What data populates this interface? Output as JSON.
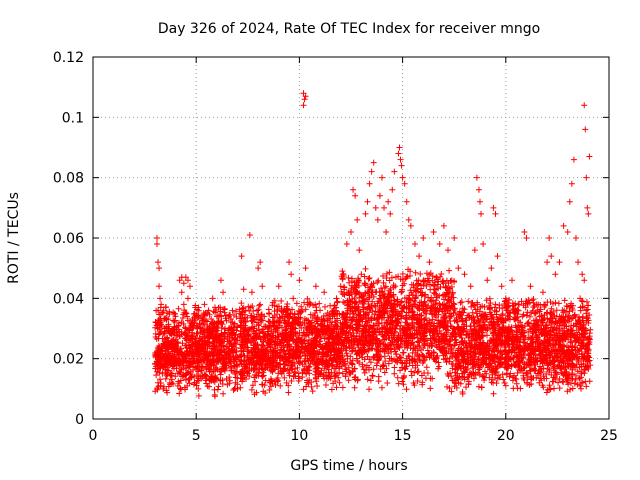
{
  "chart_data": {
    "type": "scatter",
    "title": "Day 326 of 2024, Rate Of TEC Index for receiver mngo",
    "xlabel": "GPS time / hours",
    "ylabel": "ROTI / TECUs",
    "xlim": [
      0,
      25
    ],
    "ylim": [
      0,
      0.12
    ],
    "x_ticks": [
      0,
      5,
      10,
      15,
      20,
      25
    ],
    "x_tick_labels": [
      "0",
      "5",
      "10",
      "15",
      "20",
      "25"
    ],
    "y_ticks": [
      0,
      0.02,
      0.04,
      0.06,
      0.08,
      0.1,
      0.12
    ],
    "y_tick_labels": [
      "0",
      "0.02",
      "0.04",
      "0.06",
      "0.08",
      "0.1",
      "0.12"
    ],
    "grid": true,
    "marker": "+",
    "series": [
      {
        "name": "ROTI",
        "color": "#ff0000",
        "points": [
          [
            3.1,
            0.06
          ],
          [
            3.1,
            0.058
          ],
          [
            3.15,
            0.052
          ],
          [
            3.2,
            0.05
          ],
          [
            3.2,
            0.044
          ],
          [
            3.25,
            0.04
          ],
          [
            3.3,
            0.038
          ],
          [
            3.05,
            0.032
          ],
          [
            3.2,
            0.028
          ],
          [
            3.1,
            0.022
          ],
          [
            3.3,
            0.018
          ],
          [
            3.15,
            0.012
          ],
          [
            3.4,
            0.01
          ],
          [
            3.5,
            0.024
          ],
          [
            3.6,
            0.016
          ],
          [
            3.7,
            0.03
          ],
          [
            3.8,
            0.02
          ],
          [
            3.9,
            0.026
          ],
          [
            4.0,
            0.034
          ],
          [
            4.1,
            0.022
          ],
          [
            4.2,
            0.046
          ],
          [
            4.3,
            0.047
          ],
          [
            4.4,
            0.045
          ],
          [
            4.5,
            0.047
          ],
          [
            4.6,
            0.046
          ],
          [
            4.7,
            0.044
          ],
          [
            4.3,
            0.042
          ],
          [
            4.4,
            0.038
          ],
          [
            4.6,
            0.04
          ],
          [
            4.5,
            0.03
          ],
          [
            4.8,
            0.02
          ],
          [
            4.9,
            0.014
          ],
          [
            5.0,
            0.024
          ],
          [
            5.1,
            0.01
          ],
          [
            5.2,
            0.03
          ],
          [
            5.4,
            0.038
          ],
          [
            5.6,
            0.036
          ],
          [
            5.8,
            0.04
          ],
          [
            6.0,
            0.034
          ],
          [
            6.2,
            0.046
          ],
          [
            6.3,
            0.042
          ],
          [
            6.4,
            0.03
          ],
          [
            6.5,
            0.024
          ],
          [
            6.6,
            0.02
          ],
          [
            6.7,
            0.016
          ],
          [
            6.8,
            0.022
          ],
          [
            6.9,
            0.012
          ],
          [
            7.0,
            0.01
          ],
          [
            5.5,
            0.014
          ],
          [
            5.9,
            0.008
          ],
          [
            7.2,
            0.054
          ],
          [
            7.3,
            0.043
          ],
          [
            7.4,
            0.036
          ],
          [
            7.6,
            0.061
          ],
          [
            7.7,
            0.042
          ],
          [
            7.8,
            0.03
          ],
          [
            7.9,
            0.024
          ],
          [
            8.0,
            0.05
          ],
          [
            8.1,
            0.052
          ],
          [
            8.2,
            0.044
          ],
          [
            8.3,
            0.034
          ],
          [
            8.5,
            0.026
          ],
          [
            8.6,
            0.018
          ],
          [
            8.8,
            0.032
          ],
          [
            9.0,
            0.044
          ],
          [
            9.2,
            0.028
          ],
          [
            9.4,
            0.036
          ],
          [
            9.5,
            0.052
          ],
          [
            9.6,
            0.048
          ],
          [
            9.7,
            0.04
          ],
          [
            9.8,
            0.03
          ],
          [
            10.0,
            0.046
          ],
          [
            10.1,
            0.024
          ],
          [
            10.2,
            0.108
          ],
          [
            10.25,
            0.106
          ],
          [
            10.3,
            0.107
          ],
          [
            10.2,
            0.104
          ],
          [
            10.3,
            0.05
          ],
          [
            10.4,
            0.038
          ],
          [
            10.6,
            0.032
          ],
          [
            10.8,
            0.044
          ],
          [
            10.9,
            0.028
          ],
          [
            11.0,
            0.036
          ],
          [
            11.2,
            0.042
          ],
          [
            11.4,
            0.03
          ],
          [
            11.6,
            0.034
          ],
          [
            11.8,
            0.04
          ],
          [
            12.0,
            0.044
          ],
          [
            12.1,
            0.048
          ],
          [
            12.3,
            0.058
          ],
          [
            12.5,
            0.062
          ],
          [
            12.6,
            0.076
          ],
          [
            12.7,
            0.074
          ],
          [
            12.8,
            0.066
          ],
          [
            12.9,
            0.056
          ],
          [
            13.0,
            0.048
          ],
          [
            13.2,
            0.068
          ],
          [
            13.3,
            0.072
          ],
          [
            13.4,
            0.078
          ],
          [
            13.5,
            0.082
          ],
          [
            13.6,
            0.085
          ],
          [
            13.7,
            0.07
          ],
          [
            13.8,
            0.066
          ],
          [
            13.9,
            0.074
          ],
          [
            14.0,
            0.08
          ],
          [
            14.1,
            0.07
          ],
          [
            14.2,
            0.062
          ],
          [
            14.3,
            0.072
          ],
          [
            14.4,
            0.068
          ],
          [
            14.5,
            0.076
          ],
          [
            14.6,
            0.082
          ],
          [
            14.8,
            0.088
          ],
          [
            14.85,
            0.09
          ],
          [
            14.9,
            0.086
          ],
          [
            14.95,
            0.084
          ],
          [
            15.0,
            0.08
          ],
          [
            15.1,
            0.078
          ],
          [
            15.2,
            0.072
          ],
          [
            15.3,
            0.066
          ],
          [
            15.4,
            0.064
          ],
          [
            15.6,
            0.058
          ],
          [
            15.8,
            0.054
          ],
          [
            16.0,
            0.06
          ],
          [
            16.3,
            0.052
          ],
          [
            16.5,
            0.062
          ],
          [
            16.8,
            0.058
          ],
          [
            17.0,
            0.064
          ],
          [
            17.2,
            0.056
          ],
          [
            17.5,
            0.06
          ],
          [
            17.7,
            0.05
          ],
          [
            18.0,
            0.048
          ],
          [
            18.3,
            0.044
          ],
          [
            18.5,
            0.056
          ],
          [
            18.6,
            0.08
          ],
          [
            18.7,
            0.076
          ],
          [
            18.75,
            0.072
          ],
          [
            18.8,
            0.068
          ],
          [
            18.9,
            0.058
          ],
          [
            19.1,
            0.046
          ],
          [
            19.3,
            0.05
          ],
          [
            19.4,
            0.07
          ],
          [
            19.5,
            0.068
          ],
          [
            19.6,
            0.054
          ],
          [
            19.8,
            0.044
          ],
          [
            20.0,
            0.04
          ],
          [
            20.3,
            0.046
          ],
          [
            20.6,
            0.038
          ],
          [
            20.8,
            0.034
          ],
          [
            20.9,
            0.062
          ],
          [
            21.0,
            0.06
          ],
          [
            21.2,
            0.044
          ],
          [
            21.5,
            0.038
          ],
          [
            21.8,
            0.042
          ],
          [
            22.0,
            0.052
          ],
          [
            22.1,
            0.06
          ],
          [
            22.2,
            0.054
          ],
          [
            22.4,
            0.048
          ],
          [
            22.6,
            0.052
          ],
          [
            22.8,
            0.064
          ],
          [
            23.0,
            0.062
          ],
          [
            23.1,
            0.072
          ],
          [
            23.2,
            0.078
          ],
          [
            23.3,
            0.086
          ],
          [
            23.4,
            0.06
          ],
          [
            23.5,
            0.052
          ],
          [
            23.7,
            0.048
          ],
          [
            23.8,
            0.104
          ],
          [
            23.85,
            0.096
          ],
          [
            23.9,
            0.08
          ],
          [
            23.95,
            0.07
          ],
          [
            24.0,
            0.068
          ],
          [
            24.05,
            0.087
          ],
          [
            23.8,
            0.046
          ],
          [
            23.6,
            0.04
          ],
          [
            23.9,
            0.036
          ]
        ]
      }
    ],
    "dense_band": {
      "description": "dense ROTI cloud between visible points",
      "segments": [
        {
          "x_range": [
            3.0,
            7.0
          ],
          "y_range": [
            0.003,
            0.038
          ]
        },
        {
          "x_range": [
            7.1,
            12.0
          ],
          "y_range": [
            0.004,
            0.04
          ]
        },
        {
          "x_range": [
            12.0,
            17.5
          ],
          "y_range": [
            0.005,
            0.05
          ]
        },
        {
          "x_range": [
            17.5,
            24.1
          ],
          "y_range": [
            0.004,
            0.04
          ]
        }
      ]
    }
  }
}
